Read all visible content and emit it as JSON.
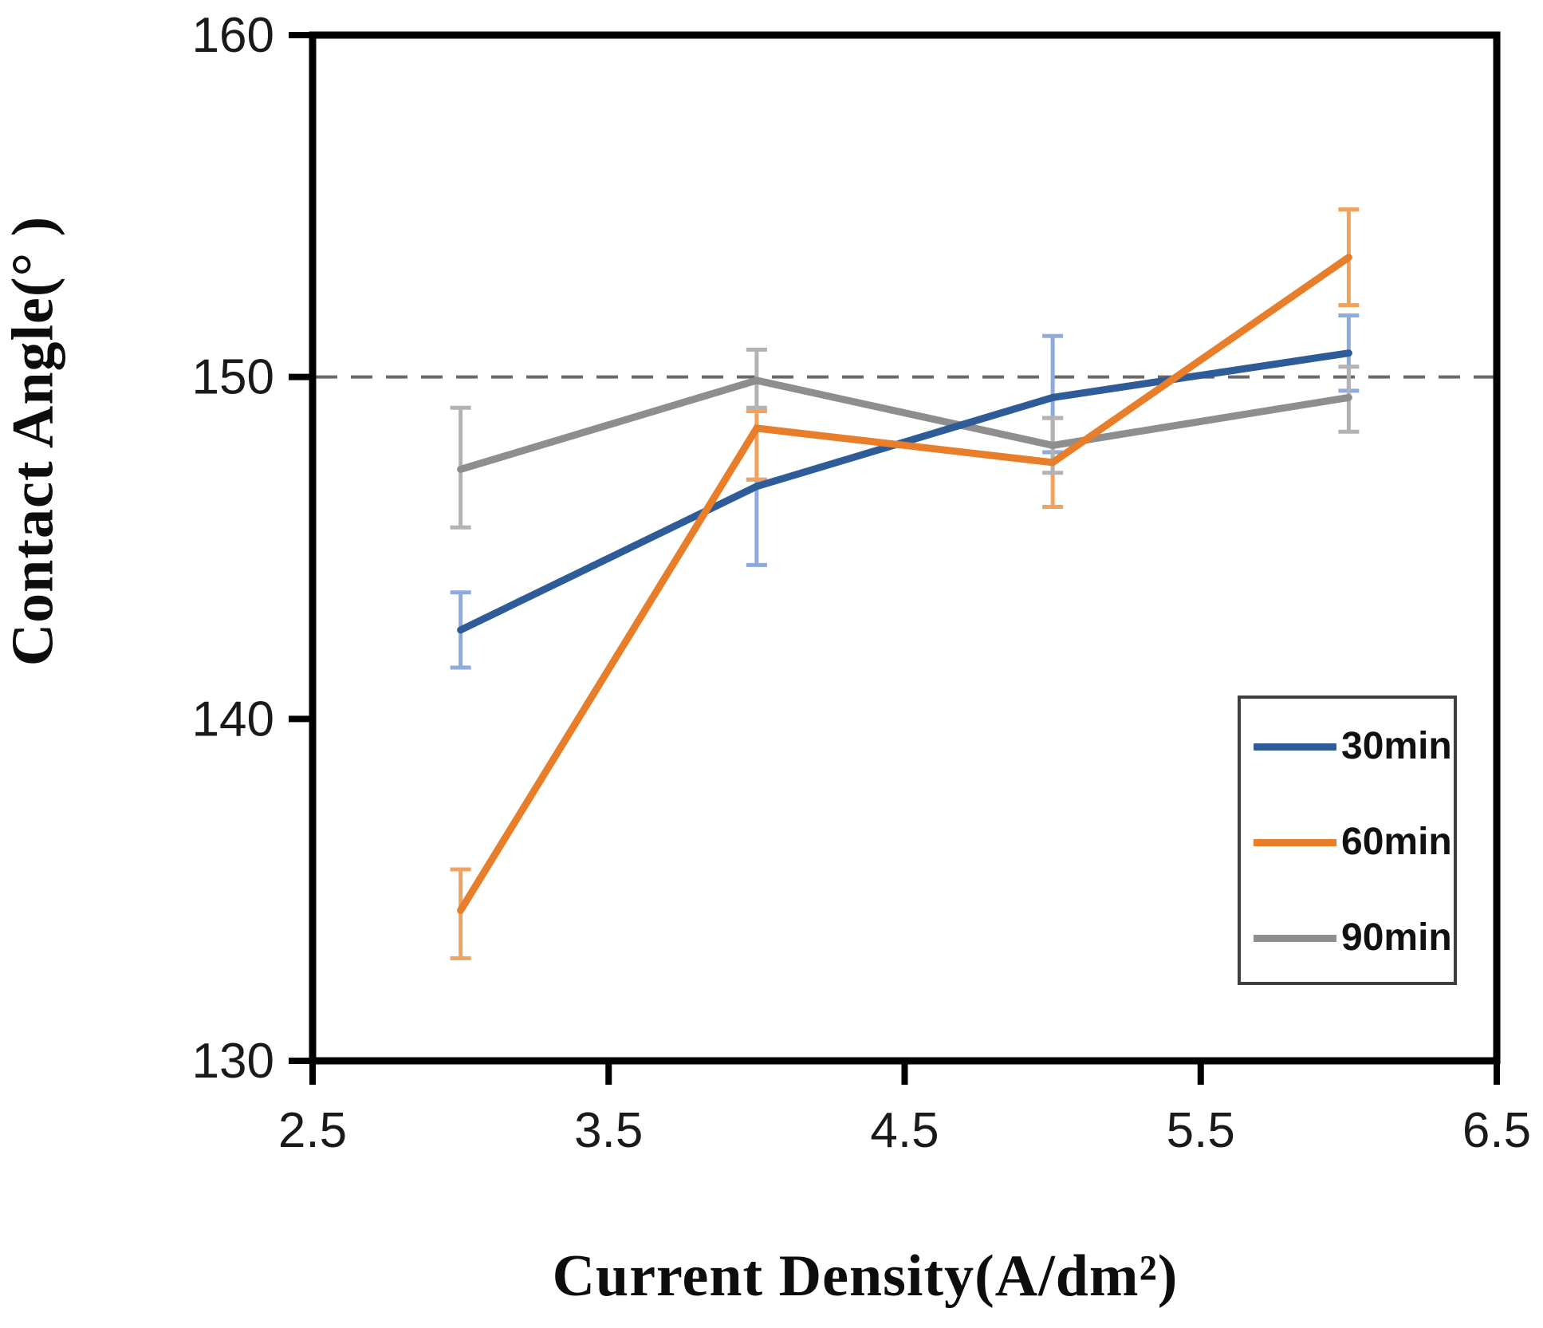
{
  "chart_data": {
    "type": "line",
    "title": "",
    "xlabel": "Current Density(A/dm²)",
    "ylabel": "Contact Angle(° )",
    "xlim": [
      2.5,
      6.5
    ],
    "ylim": [
      130,
      160
    ],
    "xticks": [
      2.5,
      3.5,
      4.5,
      5.5,
      6.5
    ],
    "xtick_labels": [
      "2.5",
      "3.5",
      "4.5",
      "5.5",
      "6.5"
    ],
    "yticks": [
      130,
      140,
      150,
      160
    ],
    "ytick_labels": [
      "130",
      "140",
      "150",
      "160"
    ],
    "grid": "off",
    "refline": {
      "y": 150,
      "color": "#696969",
      "style": "dashed"
    },
    "x": [
      3,
      4,
      5,
      6
    ],
    "series": [
      {
        "name": "30min",
        "color": "#2E5C99",
        "err_color": "#8FAADC",
        "values": [
          142.6,
          146.8,
          149.4,
          150.7
        ],
        "err_hi": [
          143.7,
          147.0,
          151.2,
          151.8
        ],
        "err_lo": [
          141.5,
          144.5,
          147.8,
          149.6
        ]
      },
      {
        "name": "60min",
        "color": "#E87D2A",
        "err_color": "#F0A35E",
        "values": [
          134.4,
          148.5,
          147.5,
          153.5
        ],
        "err_hi": [
          135.6,
          149.0,
          148.8,
          154.9
        ],
        "err_lo": [
          133.0,
          147.0,
          146.2,
          152.1
        ]
      },
      {
        "name": "90min",
        "color": "#8E8E8E",
        "err_color": "#B3B3B3",
        "values": [
          147.3,
          149.9,
          148.0,
          149.4
        ],
        "err_hi": [
          149.1,
          150.8,
          148.8,
          150.3
        ],
        "err_lo": [
          145.6,
          149.1,
          147.2,
          148.4
        ]
      }
    ],
    "legend": {
      "position": "inside-lower-right",
      "entries": [
        "30min",
        "60min",
        "90min"
      ]
    },
    "style": {
      "frame_color": "#000000",
      "tick_label_color": "#1a1a1a",
      "background": "#FFFFFF"
    }
  }
}
